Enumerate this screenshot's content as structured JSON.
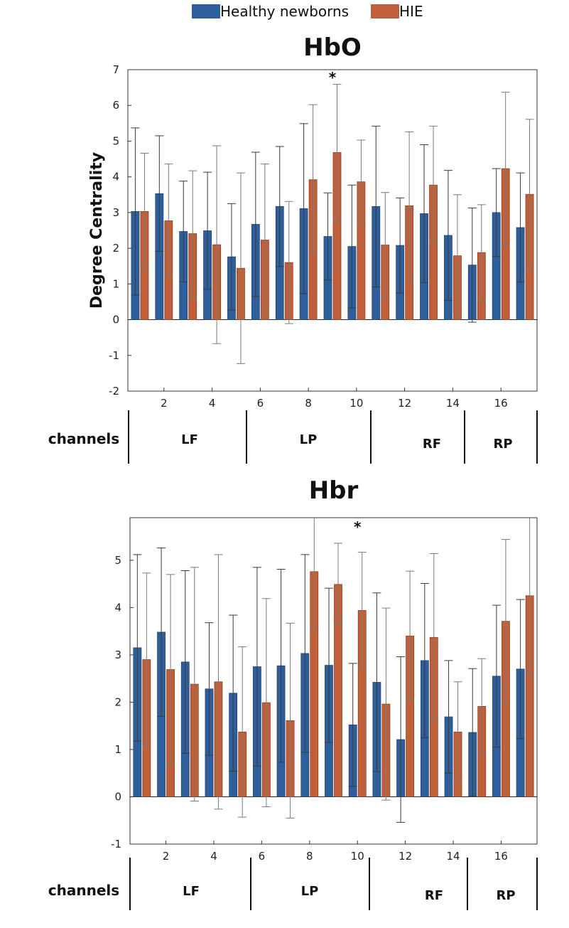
{
  "legend": {
    "healthy_label": "Healthy newborns",
    "hie_label": "HIE"
  },
  "colors": {
    "healthy": "#2f5f9a",
    "hie": "#c0603a",
    "healthy_dark": "#1f4577",
    "hie_dark": "#8e4023"
  },
  "regions": {
    "axis_label": "channels",
    "labels": [
      "LF",
      "LP",
      "RF",
      "RP"
    ]
  },
  "chart_data": [
    {
      "type": "bar",
      "title": "HbO",
      "ylabel": "Degree Centrality",
      "xlabel": "",
      "ylim": [
        -2,
        7
      ],
      "yticks": [
        -2,
        -1,
        0,
        1,
        2,
        3,
        4,
        5,
        6,
        7
      ],
      "xticks": [
        2,
        4,
        6,
        8,
        10,
        12,
        14,
        16
      ],
      "categories": [
        1,
        2,
        3,
        4,
        5,
        6,
        7,
        8,
        9,
        10,
        11,
        12,
        13,
        14,
        15,
        16,
        17
      ],
      "series": [
        {
          "name": "Healthy newborns",
          "values": [
            3.03,
            3.53,
            2.47,
            2.49,
            1.76,
            2.67,
            3.17,
            3.11,
            2.33,
            2.05,
            3.17,
            2.08,
            2.97,
            2.36,
            1.53,
            3.0,
            2.58
          ],
          "errors": [
            2.34,
            1.62,
            1.41,
            1.64,
            1.49,
            2.02,
            1.68,
            2.38,
            1.22,
            1.72,
            2.25,
            1.33,
            1.93,
            1.82,
            1.6,
            1.23,
            1.53
          ]
        },
        {
          "name": "HIE",
          "values": [
            3.03,
            2.77,
            2.41,
            2.1,
            1.44,
            2.23,
            1.6,
            3.92,
            4.68,
            3.86,
            2.09,
            3.19,
            3.77,
            1.79,
            1.88,
            4.23,
            3.51
          ],
          "errors": [
            1.63,
            1.59,
            1.76,
            2.77,
            2.67,
            2.13,
            1.71,
            2.1,
            1.91,
            1.17,
            1.47,
            2.07,
            1.65,
            1.71,
            1.34,
            2.14,
            2.1
          ]
        }
      ],
      "annotations": [
        {
          "text": "*",
          "category": 9
        }
      ]
    },
    {
      "type": "bar",
      "title": "Hbr",
      "ylabel": "",
      "xlabel": "",
      "ylim": [
        -1,
        5.9
      ],
      "yticks": [
        -1,
        0,
        1,
        2,
        3,
        4,
        5
      ],
      "xticks": [
        2,
        4,
        6,
        8,
        10,
        12,
        14,
        16
      ],
      "categories": [
        1,
        2,
        3,
        4,
        5,
        6,
        7,
        8,
        9,
        10,
        11,
        12,
        13,
        14,
        15,
        16,
        17
      ],
      "series": [
        {
          "name": "Healthy newborns",
          "values": [
            3.15,
            3.48,
            2.85,
            2.28,
            2.19,
            2.75,
            2.77,
            3.03,
            2.78,
            1.52,
            2.42,
            1.21,
            2.88,
            1.69,
            1.36,
            2.55,
            2.7
          ],
          "errors": [
            1.97,
            1.78,
            1.93,
            1.4,
            1.65,
            2.1,
            2.04,
            2.09,
            1.63,
            1.3,
            1.89,
            1.75,
            1.63,
            1.19,
            1.35,
            1.5,
            1.47
          ]
        },
        {
          "name": "HIE",
          "values": [
            2.9,
            2.69,
            2.38,
            2.43,
            1.37,
            1.99,
            1.61,
            4.76,
            4.49,
            3.94,
            1.96,
            3.4,
            3.37,
            1.37,
            1.91,
            3.71,
            4.25
          ],
          "errors": [
            1.83,
            2.01,
            2.47,
            2.69,
            1.8,
            2.2,
            2.06,
            1.23,
            0.87,
            1.23,
            2.03,
            1.37,
            1.77,
            1.06,
            1.01,
            1.73,
            1.69
          ]
        }
      ],
      "annotations": [
        {
          "text": "*",
          "category": 10
        }
      ]
    }
  ]
}
